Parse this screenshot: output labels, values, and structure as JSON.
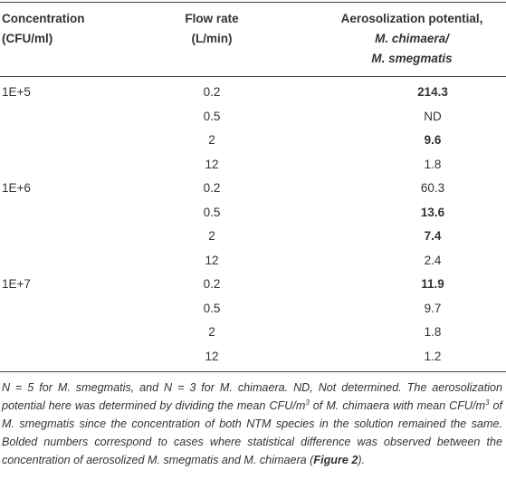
{
  "table": {
    "header": [
      [
        "Concentration",
        "(CFU/ml)"
      ],
      [
        "Flow rate",
        "(L/min)"
      ],
      [
        "Aerosolization potential,",
        "M. chimaera/",
        "M. smegmatis"
      ]
    ],
    "groups": [
      {
        "concentration": "1E+5",
        "rows": [
          {
            "flow_rate": 0.2,
            "potential": 214.3,
            "bold": true
          },
          {
            "flow_rate": 0.5,
            "potential": "ND",
            "bold": false
          },
          {
            "flow_rate": 2,
            "potential": 9.6,
            "bold": true
          },
          {
            "flow_rate": 12,
            "potential": 1.8,
            "bold": false
          }
        ]
      },
      {
        "concentration": "1E+6",
        "rows": [
          {
            "flow_rate": 0.2,
            "potential": 60.3,
            "bold": false
          },
          {
            "flow_rate": 0.5,
            "potential": 13.6,
            "bold": true
          },
          {
            "flow_rate": 2,
            "potential": 7.4,
            "bold": true
          },
          {
            "flow_rate": 12,
            "potential": 2.4,
            "bold": false
          }
        ]
      },
      {
        "concentration": "1E+7",
        "rows": [
          {
            "flow_rate": 0.2,
            "potential": 11.9,
            "bold": true
          },
          {
            "flow_rate": 0.5,
            "potential": 9.7,
            "bold": false
          },
          {
            "flow_rate": 2,
            "potential": 1.8,
            "bold": false
          },
          {
            "flow_rate": 12,
            "potential": 1.2,
            "bold": false
          }
        ]
      }
    ],
    "footnote": [
      {
        "text": "N = 5 for M. smegmatis, and N = 3 for M. chimaera. ND, Not determined. The aerosolization potential here was determined by dividing the mean CFU/m"
      },
      {
        "text": "3",
        "sup": true
      },
      {
        "text": " of M. chimaera with mean CFU/m"
      },
      {
        "text": "3",
        "sup": true
      },
      {
        "text": " of M. smegmatis since the concentration of both NTM species in the solution remained the same. Bolded numbers correspond to cases where statistical difference was observed between the concentration of aerosolized M. smegmatis and M. chimaera ("
      },
      {
        "text": "Figure 2",
        "bold": true
      },
      {
        "text": ")."
      }
    ]
  }
}
